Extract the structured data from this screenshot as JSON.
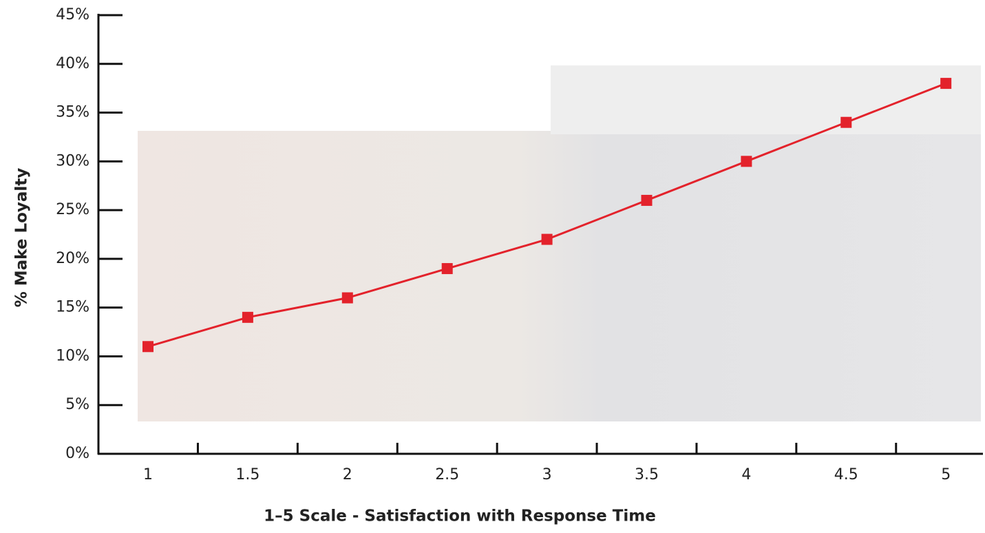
{
  "chart_data": {
    "type": "line",
    "xlabel": "1–5 Scale - Satisfaction with Response Time",
    "ylabel": "% Make Loyalty",
    "categories": [
      "1",
      "1.5",
      "2",
      "2.5",
      "3",
      "3.5",
      "4",
      "4.5",
      "5"
    ],
    "series": [
      {
        "name": "% Make Loyalty",
        "color": "#e3222b",
        "values": [
          11,
          14,
          16,
          19,
          22,
          26,
          30,
          34,
          38
        ]
      }
    ],
    "ylim": [
      0,
      45
    ],
    "yticks": [
      {
        "value": 0,
        "label": "0%"
      },
      {
        "value": 5,
        "label": "5%"
      },
      {
        "value": 10,
        "label": "10%"
      },
      {
        "value": 15,
        "label": "15%"
      },
      {
        "value": 20,
        "label": "20%"
      },
      {
        "value": 25,
        "label": "25%"
      },
      {
        "value": 30,
        "label": "30%"
      },
      {
        "value": 35,
        "label": "35%"
      },
      {
        "value": 40,
        "label": "40%"
      },
      {
        "value": 45,
        "label": "45%"
      }
    ]
  }
}
